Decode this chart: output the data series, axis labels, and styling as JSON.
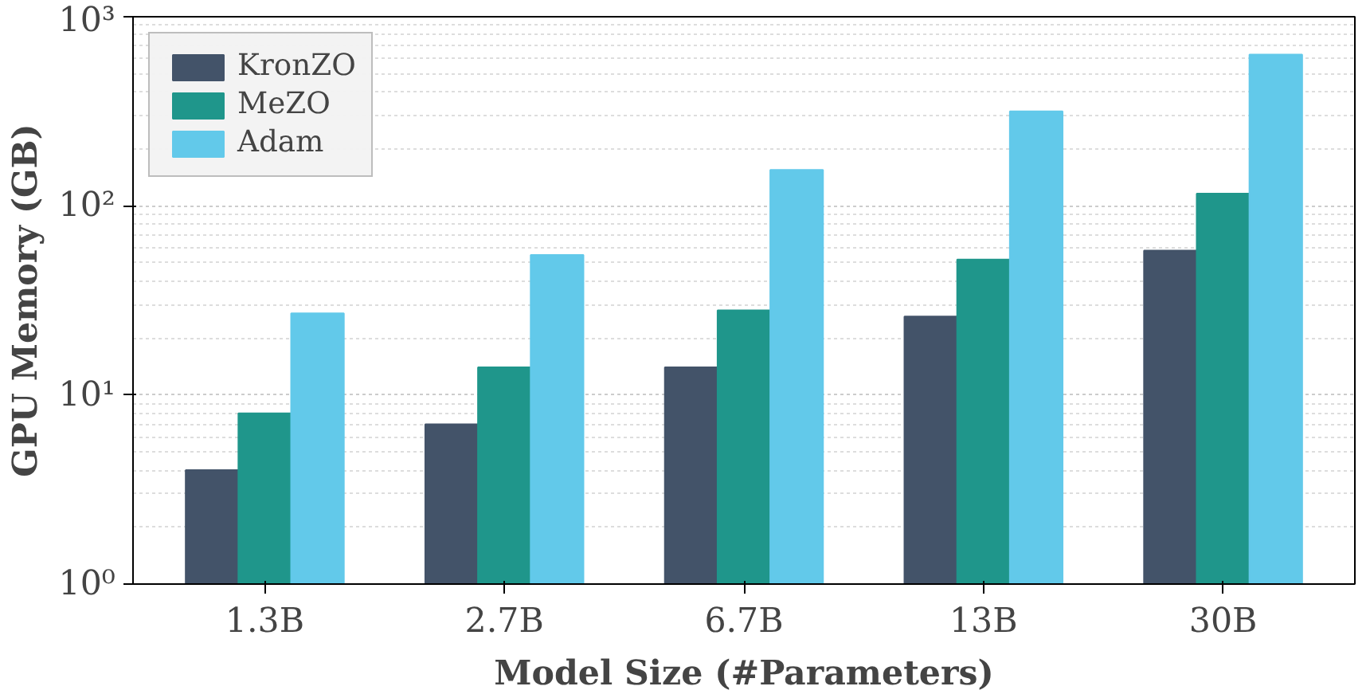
{
  "chart_data": {
    "type": "bar",
    "xlabel": "Model Size (#Parameters)",
    "ylabel": "GPU Memory (GB)",
    "categories": [
      "1.3B",
      "2.7B",
      "6.7B",
      "13B",
      "30B"
    ],
    "series": [
      {
        "name": "KronZO",
        "color": "#435369",
        "values": [
          4,
          7,
          14,
          26,
          58
        ]
      },
      {
        "name": "MeZO",
        "color": "#1f968b",
        "values": [
          8,
          14,
          28,
          52,
          116
        ]
      },
      {
        "name": "Adam",
        "color": "#62c9ea",
        "values": [
          27,
          55,
          155,
          316,
          630
        ]
      }
    ],
    "log": true,
    "ylim": [
      1,
      1000
    ],
    "yticks": [
      {
        "value": 1,
        "label": "10⁰"
      },
      {
        "value": 10,
        "label": "10¹"
      },
      {
        "value": 100,
        "label": "10²"
      },
      {
        "value": 1000,
        "label": "10³"
      }
    ],
    "grid": "y",
    "legend": "top left"
  }
}
